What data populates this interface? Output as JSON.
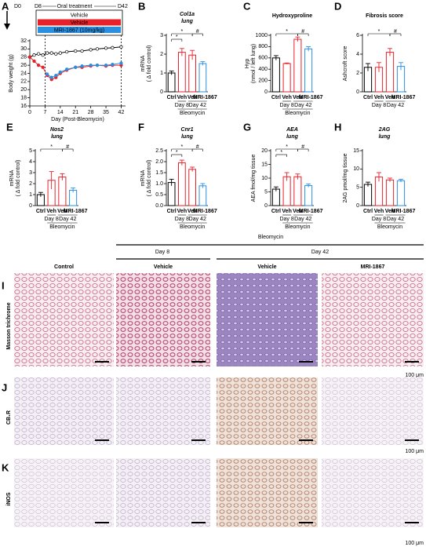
{
  "chart_data": [
    {
      "type": "line",
      "panel": "A",
      "xlabel": "Day (Post-Bleomycin)",
      "ylabel": "Body weight (g)",
      "timeline": [
        "D0",
        "D8",
        "Oral treatment",
        "D42"
      ],
      "x": [
        0,
        2,
        4,
        6,
        8,
        10,
        12,
        14,
        17,
        21,
        24,
        28,
        31,
        35,
        38,
        42
      ],
      "series": [
        {
          "name": "Vehicle",
          "color": "#000000",
          "values": [
            28,
            28.5,
            28.8,
            28.5,
            29,
            29,
            28.8,
            29,
            29.3,
            29.5,
            29.5,
            29.8,
            30,
            30.2,
            30.3,
            30.5
          ]
        },
        {
          "name": "Vehicle",
          "color": "#e8202a",
          "values": [
            28,
            27,
            26,
            25.5,
            23.5,
            22.5,
            23,
            24,
            24.8,
            25.5,
            25.5,
            25.8,
            26,
            25.8,
            26,
            26
          ]
        },
        {
          "name": "MRI-1867 (10mg/kg)",
          "color": "#2b8fe0",
          "values": [
            null,
            null,
            null,
            null,
            23.8,
            23,
            23.5,
            24.3,
            25,
            25.5,
            25.8,
            26,
            26,
            26,
            26.2,
            26.5
          ]
        }
      ],
      "xlim": [
        0,
        44
      ],
      "xticks": [
        0,
        7,
        14,
        21,
        28,
        35,
        42
      ],
      "ylim": [
        16,
        32
      ],
      "yticks": [
        16,
        18,
        20,
        22,
        24,
        26,
        28,
        30,
        32
      ]
    },
    {
      "type": "bar",
      "panel": "B",
      "title": "Col1a",
      "subtitle": "lung",
      "ylabel": [
        "mRNA",
        "( Δ fold control)"
      ],
      "categories": [
        "Ctrl",
        "Veh",
        "Veh",
        "MRI-1867"
      ],
      "values": [
        1.0,
        2.1,
        1.95,
        1.5
      ],
      "errors": [
        0.1,
        0.2,
        0.25,
        0.1
      ],
      "colors": [
        "#000000",
        "#e8202a",
        "#e8202a",
        "#2b8fe0"
      ],
      "ylim": [
        0,
        3
      ],
      "yticks": [
        0,
        1,
        2,
        3
      ],
      "groups": [
        "Day 8",
        "Day 42"
      ],
      "group_label": "Bleomycin",
      "annotations": [
        "*",
        "*",
        "#"
      ]
    },
    {
      "type": "bar",
      "panel": "C",
      "title": "Hydroxyproline",
      "ylabel": [
        "Hyp",
        "(nmol / left lung)"
      ],
      "categories": [
        "Ctrl",
        "Veh",
        "Veh",
        "MRI-1867"
      ],
      "values": [
        600,
        500,
        930,
        760
      ],
      "errors": [
        40,
        10,
        40,
        40
      ],
      "colors": [
        "#000000",
        "#e8202a",
        "#e8202a",
        "#2b8fe0"
      ],
      "ylim": [
        0,
        1000
      ],
      "yticks": [
        0,
        200,
        400,
        600,
        800,
        1000
      ],
      "groups": [
        "Day 8",
        "Day 42"
      ],
      "group_label": "Bleomycin",
      "annotations": [
        "*",
        "#"
      ]
    },
    {
      "type": "bar",
      "panel": "D",
      "title": "Fibrosis score",
      "ylabel": [
        "Ashcroft score"
      ],
      "categories": [
        "Ctrl",
        "Veh",
        "Veh",
        "MRI-1867"
      ],
      "values": [
        2.6,
        2.6,
        4.2,
        2.7
      ],
      "errors": [
        0.4,
        0.5,
        0.4,
        0.4
      ],
      "colors": [
        "#000000",
        "#e8202a",
        "#e8202a",
        "#2b8fe0"
      ],
      "ylim": [
        0,
        6
      ],
      "yticks": [
        0,
        2,
        4,
        6
      ],
      "groups": [
        "Day 8",
        "Day 42"
      ],
      "annotations": [
        "*",
        "#"
      ]
    },
    {
      "type": "bar",
      "panel": "E",
      "title": "Nos2",
      "subtitle": "lung",
      "ylabel": [
        "mRNA",
        "( Δ fold control)"
      ],
      "categories": [
        "Ctrl",
        "Veh",
        "Veh",
        "MRI-1867"
      ],
      "values": [
        1.0,
        2.3,
        2.6,
        1.4
      ],
      "errors": [
        0.2,
        0.8,
        0.3,
        0.2
      ],
      "colors": [
        "#000000",
        "#e8202a",
        "#e8202a",
        "#2b8fe0"
      ],
      "ylim": [
        0,
        5
      ],
      "yticks": [
        0,
        1,
        2,
        3,
        4,
        5
      ],
      "groups": [
        "Day 8",
        "Day 42"
      ],
      "group_label": "Bleomycin",
      "annotations": [
        "*",
        "#"
      ]
    },
    {
      "type": "bar",
      "panel": "F",
      "title": "Cnr1",
      "subtitle": "lung",
      "ylabel": [
        "mRNA",
        "( Δ fold control)"
      ],
      "categories": [
        "Ctrl",
        "Veh",
        "Veh",
        "MRI-1867"
      ],
      "values": [
        1.05,
        1.95,
        1.65,
        0.9
      ],
      "errors": [
        0.15,
        0.12,
        0.1,
        0.1
      ],
      "colors": [
        "#000000",
        "#e8202a",
        "#e8202a",
        "#2b8fe0"
      ],
      "ylim": [
        0,
        2.5
      ],
      "yticks": [
        {
          "value": 0,
          "label": "0.0"
        },
        {
          "value": 0.5,
          "label": "0.5"
        },
        {
          "value": 1,
          "label": "1.0"
        },
        {
          "value": 1.5,
          "label": "1.5"
        },
        {
          "value": 2,
          "label": "2.0"
        },
        {
          "value": 2.5,
          "label": "2.5"
        }
      ],
      "groups": [
        "Day 8",
        "Day 42"
      ],
      "group_label": "Bleomycin",
      "annotations": [
        "*",
        "*",
        "#"
      ]
    },
    {
      "type": "bar",
      "panel": "G",
      "title": "AEA",
      "subtitle": "lung",
      "ylabel": [
        "AEA fmol/mg tissue"
      ],
      "categories": [
        "Ctrl",
        "Veh",
        "Veh",
        "MRI-1867"
      ],
      "values": [
        6,
        10.5,
        10.5,
        7.3
      ],
      "errors": [
        0.8,
        1.5,
        1,
        0.6
      ],
      "colors": [
        "#000000",
        "#e8202a",
        "#e8202a",
        "#2b8fe0"
      ],
      "ylim": [
        0,
        20
      ],
      "yticks": [
        0,
        5,
        10,
        15,
        20
      ],
      "groups": [
        "Day 8",
        "Day 42"
      ],
      "group_label": "Bleomycin",
      "annotations": [
        "*",
        "*",
        "#"
      ]
    },
    {
      "type": "bar",
      "panel": "H",
      "title": "2AG",
      "subtitle": "lung",
      "ylabel": [
        "2AG pmol/mg tissue"
      ],
      "categories": [
        "Ctrl",
        "Veh",
        "Veh",
        "MRI-1867"
      ],
      "values": [
        5.8,
        7.8,
        7,
        6.8
      ],
      "errors": [
        0.6,
        1.2,
        0.5,
        0.4
      ],
      "colors": [
        "#000000",
        "#e8202a",
        "#e8202a",
        "#2b8fe0"
      ],
      "ylim": [
        0,
        15
      ],
      "yticks": [
        0,
        5,
        10,
        15
      ],
      "groups": [
        "Day 8",
        "Day 42"
      ],
      "group_label": "Bleomycin",
      "annotations": []
    }
  ],
  "histology": {
    "header": "Bleomycin",
    "days": [
      "Day 8",
      "Day 42"
    ],
    "columns": [
      "Control",
      "Vehicle",
      "Vehicle",
      "MRI-1867"
    ],
    "rows": [
      {
        "panel": "I",
        "label": "Masson trichrome",
        "scale": "100 μm"
      },
      {
        "panel": "J",
        "label": "CB₁R",
        "scale": "100 μm"
      },
      {
        "panel": "K",
        "label": "iNOS",
        "scale": "100 μm"
      }
    ]
  }
}
